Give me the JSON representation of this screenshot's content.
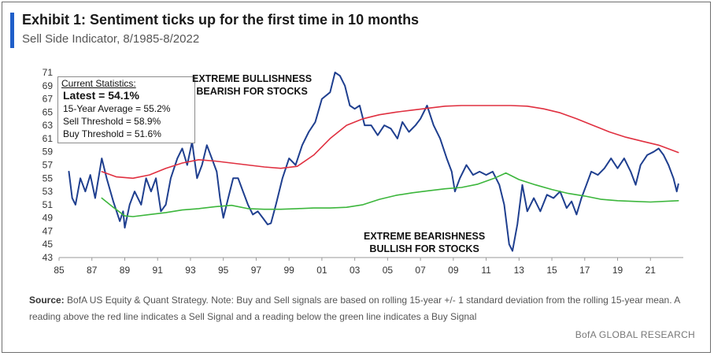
{
  "header": {
    "title": "Exhibit 1: Sentiment ticks up for the first time in 10 months",
    "subtitle": "Sell Side Indicator, 8/1985-8/2022",
    "accent_color": "#1f5fc9"
  },
  "stats": {
    "heading": "Current Statistics:",
    "latest": "Latest = 54.1%",
    "avg": "15-Year Average = 55.2%",
    "sell": "Sell Threshold = 58.9%",
    "buy": "Buy Threshold = 51.6%"
  },
  "annotations": {
    "bull_line1": "EXTREME BULLISHNESS",
    "bull_line2": "BEARISH FOR STOCKS",
    "bear_line1": "EXTREME BEARISHNESS",
    "bear_line2": "BULLISH FOR STOCKS"
  },
  "footer": {
    "source_label": "Source:",
    "source_text": " BofA US Equity & Quant Strategy. Note: Buy and Sell signals are based on rolling 15-year +/- 1 standard deviation from the rolling 15-year mean. A reading above the red line indicates a Sell Signal and a reading below the green line indicates a Buy Signal",
    "brand": "BofA GLOBAL RESEARCH"
  },
  "chart_data": {
    "type": "line",
    "title": "Sell Side Indicator, 8/1985-8/2022",
    "xlabel": "",
    "ylabel": "",
    "xlim": [
      1985,
      2023
    ],
    "ylim": [
      43,
      71
    ],
    "x_ticks": [
      1985,
      1987,
      1989,
      1991,
      1993,
      1995,
      1997,
      1999,
      2001,
      2003,
      2005,
      2007,
      2009,
      2011,
      2013,
      2015,
      2017,
      2019,
      2021
    ],
    "x_tick_labels": [
      "85",
      "87",
      "89",
      "91",
      "93",
      "95",
      "97",
      "99",
      "01",
      "03",
      "05",
      "07",
      "09",
      "11",
      "13",
      "15",
      "17",
      "19",
      "21"
    ],
    "y_ticks": [
      43,
      45,
      47,
      49,
      51,
      53,
      55,
      57,
      59,
      61,
      63,
      65,
      67,
      69,
      71
    ],
    "grid": false,
    "legend": "none",
    "series": [
      {
        "color": "#1f3f8f",
        "points": [
          [
            1985.6,
            56.0
          ],
          [
            1985.8,
            52.0
          ],
          [
            1986.0,
            51.0
          ],
          [
            1986.3,
            55.0
          ],
          [
            1986.6,
            53.0
          ],
          [
            1986.9,
            55.5
          ],
          [
            1987.2,
            52.0
          ],
          [
            1987.6,
            58.0
          ],
          [
            1987.9,
            55.0
          ],
          [
            1988.3,
            51.5
          ],
          [
            1988.7,
            48.5
          ],
          [
            1988.9,
            50.0
          ],
          [
            1989.0,
            47.5
          ],
          [
            1989.3,
            51.0
          ],
          [
            1989.6,
            53.0
          ],
          [
            1990.0,
            51.0
          ],
          [
            1990.3,
            55.0
          ],
          [
            1990.6,
            53.0
          ],
          [
            1990.9,
            55.0
          ],
          [
            1991.2,
            50.0
          ],
          [
            1991.5,
            51.0
          ],
          [
            1991.8,
            55.0
          ],
          [
            1992.2,
            58.0
          ],
          [
            1992.5,
            59.5
          ],
          [
            1992.8,
            57.0
          ],
          [
            1993.1,
            60.5
          ],
          [
            1993.4,
            55.0
          ],
          [
            1993.7,
            57.0
          ],
          [
            1994.0,
            60.0
          ],
          [
            1994.3,
            58.0
          ],
          [
            1994.6,
            56.0
          ],
          [
            1994.8,
            52.0
          ],
          [
            1995.0,
            49.0
          ],
          [
            1995.3,
            52.0
          ],
          [
            1995.6,
            55.0
          ],
          [
            1995.9,
            55.0
          ],
          [
            1996.2,
            53.0
          ],
          [
            1996.5,
            51.0
          ],
          [
            1996.8,
            49.5
          ],
          [
            1997.1,
            50.0
          ],
          [
            1997.4,
            49.0
          ],
          [
            1997.7,
            48.0
          ],
          [
            1997.9,
            48.2
          ],
          [
            1998.2,
            51.0
          ],
          [
            1998.6,
            55.0
          ],
          [
            1999.0,
            58.0
          ],
          [
            1999.4,
            57.0
          ],
          [
            1999.8,
            60.0
          ],
          [
            2000.2,
            62.0
          ],
          [
            2000.6,
            63.5
          ],
          [
            2001.0,
            67.0
          ],
          [
            2001.5,
            68.0
          ],
          [
            2001.8,
            71.0
          ],
          [
            2002.1,
            70.5
          ],
          [
            2002.4,
            69.0
          ],
          [
            2002.7,
            66.0
          ],
          [
            2003.0,
            65.5
          ],
          [
            2003.3,
            66.0
          ],
          [
            2003.6,
            63.0
          ],
          [
            2004.0,
            63.0
          ],
          [
            2004.4,
            61.5
          ],
          [
            2004.8,
            63.0
          ],
          [
            2005.2,
            62.5
          ],
          [
            2005.6,
            61.0
          ],
          [
            2005.9,
            63.5
          ],
          [
            2006.3,
            62.0
          ],
          [
            2006.7,
            63.0
          ],
          [
            2007.0,
            64.0
          ],
          [
            2007.4,
            66.0
          ],
          [
            2007.8,
            63.0
          ],
          [
            2008.2,
            61.0
          ],
          [
            2008.6,
            58.0
          ],
          [
            2008.9,
            56.0
          ],
          [
            2009.1,
            53.0
          ],
          [
            2009.4,
            55.0
          ],
          [
            2009.8,
            57.0
          ],
          [
            2010.2,
            55.5
          ],
          [
            2010.6,
            56.0
          ],
          [
            2011.0,
            55.5
          ],
          [
            2011.4,
            56.0
          ],
          [
            2011.8,
            54.0
          ],
          [
            2012.1,
            51.0
          ],
          [
            2012.4,
            45.0
          ],
          [
            2012.6,
            44.0
          ],
          [
            2012.9,
            48.0
          ],
          [
            2013.2,
            54.0
          ],
          [
            2013.5,
            50.0
          ],
          [
            2013.9,
            52.0
          ],
          [
            2014.3,
            50.0
          ],
          [
            2014.7,
            52.5
          ],
          [
            2015.1,
            52.0
          ],
          [
            2015.5,
            53.0
          ],
          [
            2015.9,
            50.5
          ],
          [
            2016.2,
            51.5
          ],
          [
            2016.5,
            49.5
          ],
          [
            2016.8,
            52.0
          ],
          [
            2017.1,
            54.0
          ],
          [
            2017.4,
            56.0
          ],
          [
            2017.8,
            55.5
          ],
          [
            2018.2,
            56.5
          ],
          [
            2018.6,
            58.0
          ],
          [
            2019.0,
            56.5
          ],
          [
            2019.4,
            58.0
          ],
          [
            2019.8,
            56.0
          ],
          [
            2020.1,
            54.0
          ],
          [
            2020.4,
            57.0
          ],
          [
            2020.8,
            58.5
          ],
          [
            2021.2,
            59.0
          ],
          [
            2021.5,
            59.5
          ],
          [
            2021.8,
            58.5
          ],
          [
            2022.1,
            57.0
          ],
          [
            2022.4,
            55.0
          ],
          [
            2022.6,
            53.0
          ],
          [
            2022.7,
            54.1
          ]
        ]
      },
      {
        "color": "#e03040",
        "points": [
          [
            1987.6,
            56.0
          ],
          [
            1988.5,
            55.2
          ],
          [
            1989.5,
            55.0
          ],
          [
            1990.5,
            55.5
          ],
          [
            1991.5,
            56.5
          ],
          [
            1992.5,
            57.3
          ],
          [
            1993.5,
            57.8
          ],
          [
            1994.5,
            57.6
          ],
          [
            1995.5,
            57.3
          ],
          [
            1996.5,
            57.0
          ],
          [
            1997.5,
            56.7
          ],
          [
            1998.5,
            56.5
          ],
          [
            1999.5,
            56.8
          ],
          [
            2000.5,
            58.5
          ],
          [
            2001.5,
            61.0
          ],
          [
            2002.5,
            63.0
          ],
          [
            2003.5,
            64.0
          ],
          [
            2004.5,
            64.6
          ],
          [
            2005.5,
            65.0
          ],
          [
            2006.5,
            65.3
          ],
          [
            2007.5,
            65.6
          ],
          [
            2008.5,
            65.9
          ],
          [
            2009.5,
            66.0
          ],
          [
            2010.5,
            66.0
          ],
          [
            2011.5,
            66.0
          ],
          [
            2012.5,
            66.0
          ],
          [
            2013.5,
            65.9
          ],
          [
            2014.5,
            65.5
          ],
          [
            2015.5,
            64.9
          ],
          [
            2016.5,
            64.0
          ],
          [
            2017.5,
            63.0
          ],
          [
            2018.5,
            62.0
          ],
          [
            2019.5,
            61.2
          ],
          [
            2020.5,
            60.6
          ],
          [
            2021.5,
            60.0
          ],
          [
            2022.7,
            58.9
          ]
        ]
      },
      {
        "color": "#3cb63c",
        "points": [
          [
            1987.6,
            52.0
          ],
          [
            1988.3,
            50.6
          ],
          [
            1989.0,
            49.3
          ],
          [
            1989.5,
            49.2
          ],
          [
            1990.5,
            49.5
          ],
          [
            1991.5,
            49.8
          ],
          [
            1992.5,
            50.2
          ],
          [
            1993.5,
            50.4
          ],
          [
            1994.5,
            50.7
          ],
          [
            1995.5,
            50.9
          ],
          [
            1996.5,
            50.4
          ],
          [
            1997.5,
            50.3
          ],
          [
            1998.5,
            50.3
          ],
          [
            1999.5,
            50.4
          ],
          [
            2000.5,
            50.5
          ],
          [
            2001.5,
            50.5
          ],
          [
            2002.5,
            50.6
          ],
          [
            2003.5,
            51.0
          ],
          [
            2004.5,
            51.8
          ],
          [
            2005.5,
            52.4
          ],
          [
            2006.5,
            52.8
          ],
          [
            2007.5,
            53.1
          ],
          [
            2008.5,
            53.4
          ],
          [
            2009.5,
            53.6
          ],
          [
            2010.5,
            54.1
          ],
          [
            2011.5,
            55.0
          ],
          [
            2012.2,
            55.8
          ],
          [
            2013.0,
            54.8
          ],
          [
            2014.0,
            54.0
          ],
          [
            2015.0,
            53.3
          ],
          [
            2016.0,
            52.7
          ],
          [
            2017.0,
            52.3
          ],
          [
            2018.0,
            51.8
          ],
          [
            2019.0,
            51.6
          ],
          [
            2020.0,
            51.5
          ],
          [
            2021.0,
            51.4
          ],
          [
            2022.7,
            51.6
          ]
        ]
      }
    ]
  }
}
